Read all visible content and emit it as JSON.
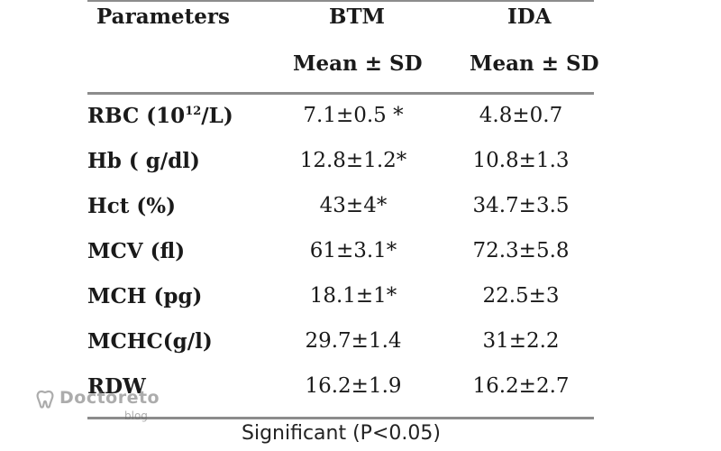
{
  "table": {
    "headers": {
      "parameters": "Parameters",
      "group1": "BTM",
      "group2": "IDA",
      "group1_sub": "Mean ± SD",
      "group2_sub": "Mean ± SD"
    },
    "rows": [
      {
        "param_main": "RBC (10",
        "param_sup": "12",
        "param_tail": "/L)",
        "btm": "7.1±0.5 *",
        "ida": "4.8±0.7"
      },
      {
        "param": "Hb ( g/dl)",
        "btm": "12.8±1.2*",
        "ida": "10.8±1.3"
      },
      {
        "param": "Hct (%)",
        "btm": "43±4*",
        "ida": "34.7±3.5"
      },
      {
        "param": "MCV (fl)",
        "btm": "61±3.1*",
        "ida": "72.3±5.8"
      },
      {
        "param": "MCH (pg)",
        "btm": "18.1±1*",
        "ida": "22.5±3"
      },
      {
        "param": "MCHC(g/l)",
        "btm": "29.7±1.4",
        "ida": "31±2.2"
      },
      {
        "param": "RDW",
        "btm": "16.2±1.9",
        "ida": "16.2±2.7"
      }
    ],
    "footnote": "Significant (P<0.05)"
  },
  "watermark": {
    "name": "Doctoreto",
    "sub": "blog",
    "icon": "tooth-logo-icon",
    "color": "#6a6a6a"
  }
}
